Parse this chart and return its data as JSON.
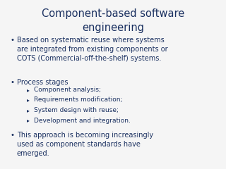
{
  "title": "Component-based software\nengineering",
  "title_color": "#1a3060",
  "title_fontsize": 10.5,
  "bg_color": "#f5f5f5",
  "text_color": "#1a3060",
  "main_bullets": [
    "Based on systematic reuse where systems\nare integrated from existing components or\nCOTS (Commercial-off-the-shelf) systems.",
    "Process stages",
    "This approach is becoming increasingly\nused as component standards have\nemerged."
  ],
  "sub_bullets": [
    "Component analysis;",
    "Requirements modification;",
    "System design with reuse;",
    "Development and integration."
  ],
  "main_fontsize": 7.0,
  "sub_fontsize": 6.5,
  "bullet_fontsize": 7.5,
  "sub_bullet_fontsize": 5.5
}
